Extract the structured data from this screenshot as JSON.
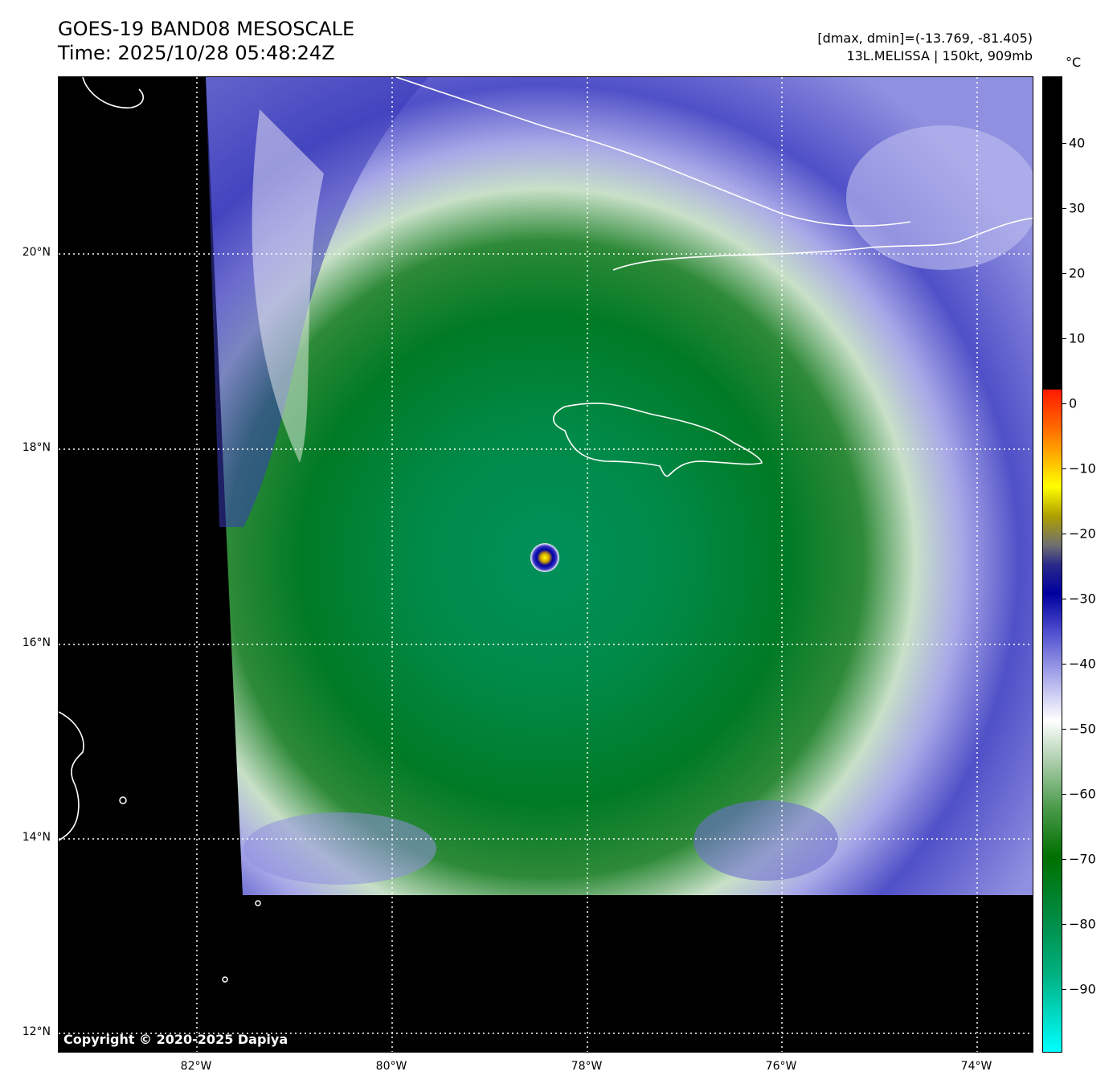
{
  "title": {
    "line1": "GOES-19 BAND08 MESOSCALE",
    "line2": "Time: 2025/10/28 05:48:24Z"
  },
  "info": {
    "line1": "[dmax, dmin]=(-13.769, -81.405)",
    "line2": "13L.MELISSA | 150kt, 909mb"
  },
  "copyright": "Copyright © 2020-2025 Dapiya",
  "lat_labels": [
    "20°N",
    "18°N",
    "16°N",
    "14°N",
    "12°N"
  ],
  "lon_labels": [
    "82°W",
    "80°W",
    "78°W",
    "76°W",
    "74°W"
  ],
  "colorbar": {
    "unit": "°C",
    "ticks": [
      "40",
      "30",
      "20",
      "10",
      "0",
      "−10",
      "−20",
      "−30",
      "−40",
      "−50",
      "−60",
      "−70",
      "−80",
      "−90"
    ]
  },
  "storm": {
    "name": "13L.MELISSA",
    "center_lon": -78.4,
    "center_lat": 16.9
  }
}
